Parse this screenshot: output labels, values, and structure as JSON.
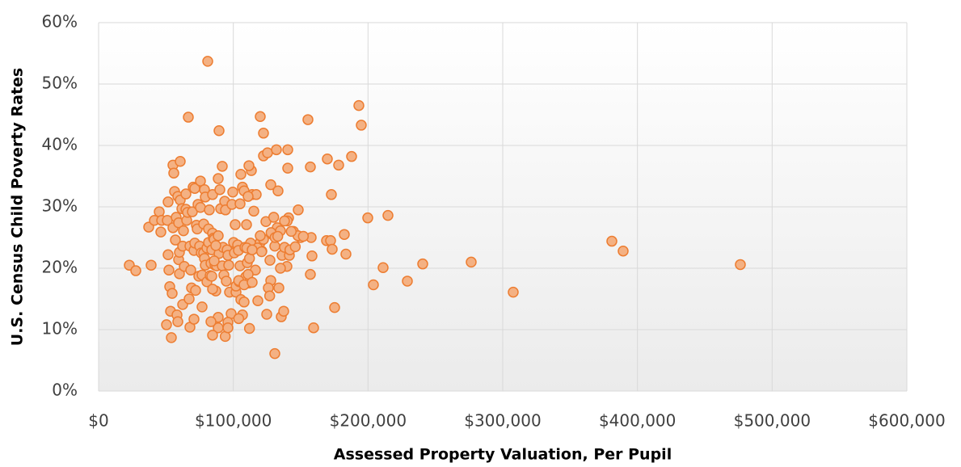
{
  "chart_data": {
    "type": "scatter",
    "x_label": "Assessed Property Valuation, Per Pupil",
    "y_label": "U.S. Census Child Poverty Rates",
    "color": "#f4b183",
    "edge_color": "#ed7d31",
    "grid": true,
    "xlim": [
      0,
      600000
    ],
    "xticks": [
      {
        "value": 0,
        "label": "$0"
      },
      {
        "value": 100000,
        "label": "$100,000"
      },
      {
        "value": 200000,
        "label": "$200,000"
      },
      {
        "value": 300000,
        "label": "$300,000"
      },
      {
        "value": 400000,
        "label": "$400,000"
      },
      {
        "value": 500000,
        "label": "$500,000"
      },
      {
        "value": 600000,
        "label": "$600,000"
      }
    ],
    "ylim": [
      0,
      60
    ],
    "yticks": [
      {
        "value": 0,
        "label": "0%"
      },
      {
        "value": 10,
        "label": "10%"
      },
      {
        "value": 20,
        "label": "20%"
      },
      {
        "value": 30,
        "label": "30%"
      },
      {
        "value": 40,
        "label": "40%"
      },
      {
        "value": 50,
        "label": "50%"
      },
      {
        "value": 60,
        "label": "60%"
      }
    ],
    "x": [
      22800,
      27600,
      37200,
      39000,
      41400,
      45000,
      46200,
      46800,
      51000,
      51600,
      50400,
      51600,
      52200,
      52800,
      53400,
      54000,
      54600,
      55200,
      55200,
      55800,
      56400,
      57000,
      57600,
      58200,
      58800,
      58800,
      59400,
      59400,
      60000,
      60600,
      60000,
      60600,
      61800,
      62400,
      62400,
      63000,
      63600,
      64800,
      64800,
      65400,
      66000,
      66600,
      67200,
      67800,
      67800,
      68400,
      69000,
      69600,
      70200,
      70800,
      70800,
      71400,
      71400,
      72000,
      72600,
      73200,
      73800,
      74400,
      75000,
      75600,
      75600,
      76200,
      76800,
      76800,
      78000,
      78000,
      78600,
      78600,
      79200,
      79200,
      80400,
      80400,
      81600,
      81600,
      82200,
      82800,
      83400,
      84000,
      84600,
      84600,
      85200,
      85800,
      86400,
      87000,
      87600,
      88800,
      88800,
      88800,
      89400,
      90000,
      90600,
      91800,
      92400,
      93000,
      93600,
      94200,
      94800,
      95400,
      96000,
      96600,
      97200,
      98400,
      99000,
      99600,
      100200,
      100800,
      101400,
      102000,
      102000,
      103200,
      103800,
      104400,
      105600,
      108600,
      109800,
      105000,
      106800,
      108000,
      109200,
      110400,
      111600,
      112800,
      113400,
      114000,
      115200,
      116400,
      117000,
      118200,
      120000,
      121200,
      122400,
      124200,
      127200,
      127800,
      129000,
      130800,
      132600,
      133800,
      135000,
      135600,
      136200,
      138000,
      139800,
      141000,
      141600,
      84000,
      84600,
      88800,
      83400,
      84600,
      85800,
      87000,
      81000,
      120000,
      122400,
      122400,
      125400,
      132000,
      140400,
      140400,
      127800,
      133200,
      105600,
      111600,
      106800,
      108000,
      111000,
      105000,
      89400,
      91800,
      155400,
      157200,
      169800,
      178200,
      187800,
      172800,
      148200,
      144600,
      150000,
      157800,
      158400,
      157200,
      159600,
      137400,
      130800,
      124800,
      135000,
      169200,
      172200,
      173400,
      175200,
      182400,
      183600,
      193200,
      195000,
      199800,
      204000,
      214800,
      211200,
      229200,
      240600,
      276600,
      307800,
      381000,
      389400,
      476400,
      120000,
      118000,
      112000,
      110000,
      114000,
      140000,
      142000,
      146000,
      148000,
      152000,
      128000,
      130000,
      131000,
      133000,
      138000,
      126000,
      127000,
      112000,
      104000,
      96000,
      94000,
      96000,
      104000,
      111000,
      108000,
      114000,
      121000,
      143000
    ],
    "values": [
      20.5,
      19.6,
      26.7,
      20.5,
      27.8,
      29.2,
      25.9,
      27.8,
      27.8,
      30.8,
      10.8,
      22.2,
      19.7,
      17.0,
      13.0,
      8.7,
      15.9,
      26.6,
      36.8,
      35.5,
      32.5,
      24.6,
      28.3,
      12.4,
      31.7,
      11.3,
      27.4,
      21.4,
      19.1,
      37.4,
      22.6,
      31.1,
      29.7,
      23.6,
      14.1,
      26.1,
      20.3,
      29.6,
      32.1,
      27.8,
      29.1,
      44.6,
      15.0,
      10.4,
      23.6,
      19.7,
      16.8,
      29.2,
      33.2,
      22.9,
      11.7,
      24.1,
      33.0,
      16.4,
      27.0,
      26.4,
      30.4,
      18.7,
      23.6,
      34.2,
      29.9,
      22.5,
      18.9,
      13.7,
      22.5,
      27.2,
      32.8,
      21.6,
      20.5,
      31.6,
      23.3,
      17.8,
      26.4,
      24.2,
      29.5,
      18.8,
      20.8,
      23.0,
      25.7,
      32.0,
      24.9,
      24.7,
      20.5,
      16.3,
      20.4,
      10.3,
      25.3,
      34.6,
      22.4,
      32.8,
      29.7,
      20.4,
      23.4,
      18.9,
      30.9,
      29.5,
      17.9,
      23.0,
      22.1,
      20.5,
      16.1,
      12.6,
      30.4,
      32.4,
      24.2,
      22.5,
      27.1,
      16.1,
      17.1,
      23.8,
      22.9,
      17.8,
      14.9,
      23.4,
      27.1,
      20.4,
      12.4,
      14.5,
      18.6,
      20.9,
      17.6,
      24.1,
      35.9,
      32.0,
      29.3,
      19.7,
      32.0,
      14.7,
      24.2,
      22.8,
      24.7,
      27.6,
      21.3,
      18.0,
      25.5,
      23.6,
      26.6,
      16.8,
      26.1,
      12.1,
      22.1,
      23.4,
      20.3,
      28.2,
      22.1,
      18.7,
      16.6,
      12.0,
      11.3,
      9.1,
      21.2,
      23.7,
      53.7,
      44.7,
      42.0,
      38.3,
      38.8,
      39.3,
      39.3,
      36.3,
      33.6,
      32.6,
      35.3,
      36.7,
      33.2,
      32.6,
      31.7,
      30.5,
      42.4,
      36.6,
      44.2,
      36.5,
      37.8,
      36.8,
      38.2,
      32.0,
      29.5,
      26.0,
      25.0,
      25.0,
      22.0,
      19.0,
      10.3,
      13.0,
      6.1,
      12.5,
      20.0,
      24.5,
      24.5,
      23.1,
      13.6,
      25.5,
      22.3,
      46.5,
      43.3,
      28.2,
      17.3,
      28.6,
      20.1,
      17.9,
      20.7,
      21.0,
      16.1,
      24.4,
      22.8,
      20.6,
      25.3,
      23.3,
      21.6,
      23.3,
      23.0,
      27.7,
      23.0,
      23.5,
      25.3,
      25.2,
      25.8,
      28.3,
      25.0,
      25.2,
      27.7,
      16.8,
      15.5,
      10.2,
      11.8,
      11.2,
      8.9,
      10.3,
      18.0,
      19.0,
      17.3,
      17.7,
      22.7,
      26.0
    ]
  }
}
